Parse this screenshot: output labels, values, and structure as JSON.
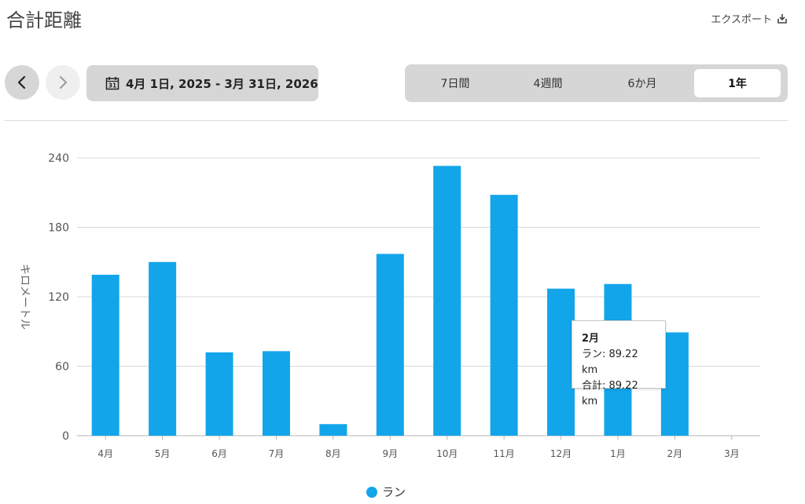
{
  "header": {
    "title": "合計距離",
    "export_label": "エクスポート"
  },
  "controls": {
    "date_range": "4月 1日, 2025 - 3月 31日, 2026",
    "calendar_day": "31",
    "tabs": [
      {
        "label": "7日間",
        "active": false
      },
      {
        "label": "4週間",
        "active": false
      },
      {
        "label": "6か月",
        "active": false
      },
      {
        "label": "1年",
        "active": true
      }
    ]
  },
  "tooltip": {
    "title": "2月",
    "line1": "ラン: 89.22 km",
    "line2": "合計: 89.22 km"
  },
  "legend": {
    "label": "ラン"
  },
  "colors": {
    "bar": "#12a5ea",
    "grid": "#d9d9d9"
  },
  "chart_data": {
    "type": "bar",
    "categories": [
      "4月",
      "5月",
      "6月",
      "7月",
      "8月",
      "9月",
      "10月",
      "11月",
      "12月",
      "1月",
      "2月",
      "3月"
    ],
    "series": [
      {
        "name": "ラン",
        "values": [
          139,
          150,
          72,
          73,
          10,
          157,
          233,
          208,
          127,
          131,
          89.22,
          0
        ]
      }
    ],
    "title": "",
    "xlabel": "",
    "ylabel": "キロメートル",
    "ylim": [
      0,
      240
    ],
    "yticks": [
      0,
      60,
      120,
      180,
      240
    ],
    "grid": true,
    "legend": "bottom-center"
  }
}
